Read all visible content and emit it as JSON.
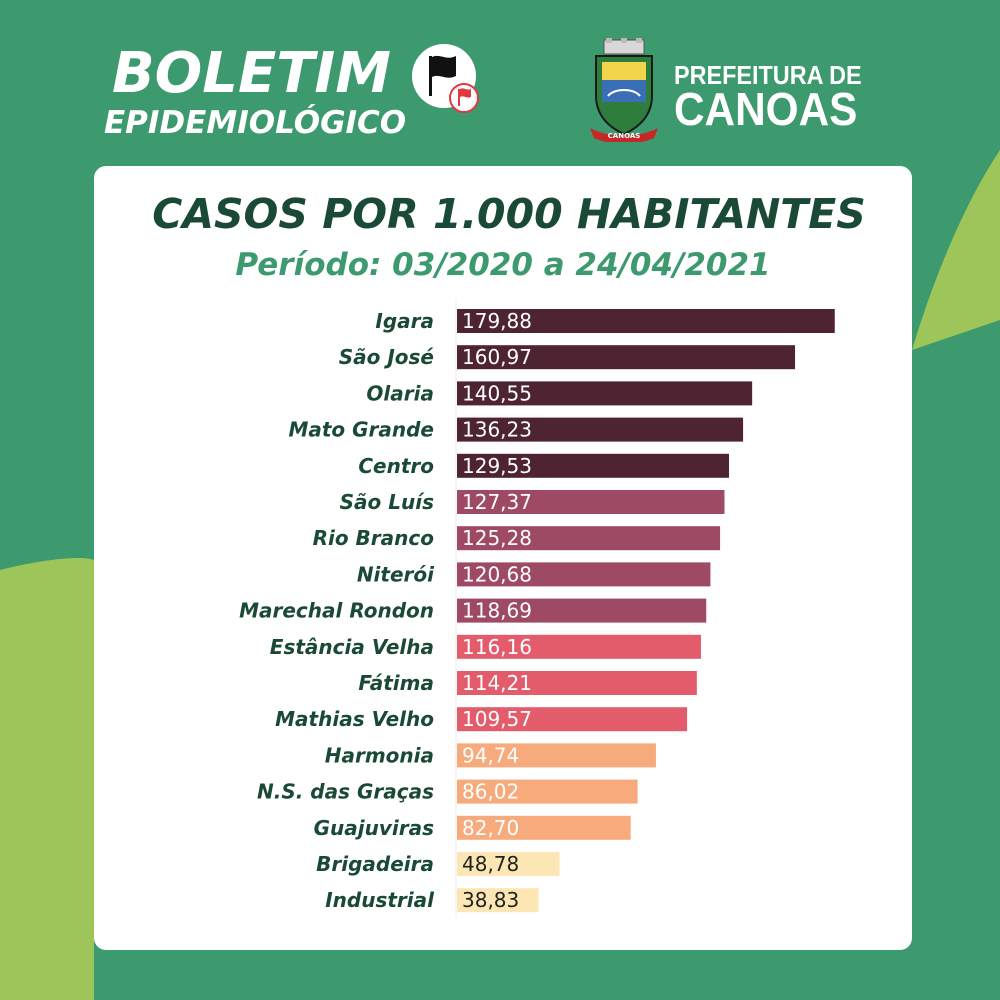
{
  "header": {
    "boletim": "BOLETIM",
    "epidemiologico": "EPIDEMIOLÓGICO",
    "prefeitura_line1": "PREFEITURA DE",
    "prefeitura_line2": "CANOAS",
    "coat_banner": "CANOAS",
    "flag_icon": "black-flag-icon",
    "red_flag_icon": "red-flag-icon"
  },
  "colors": {
    "background": "#3d9a6e",
    "swoosh": "#9dc55a",
    "title": "#1a4a36",
    "subtitle": "#3d9a6e",
    "tier_dark": "#4e2433",
    "tier_mauve": "#9e4a64",
    "tier_red": "#e35c6c",
    "tier_orange": "#f7ab7c",
    "tier_cream": "#fbe6b4"
  },
  "chart_data": {
    "type": "bar",
    "orientation": "horizontal",
    "title": "CASOS POR 1.000 HABITANTES",
    "subtitle": "Período: 03/2020 a 24/04/2021",
    "categories": [
      "Igara",
      "São José",
      "Olaria",
      "Mato Grande",
      "Centro",
      "São Luís",
      "Rio Branco",
      "Niterói",
      "Marechal Rondon",
      "Estância Velha",
      "Fátima",
      "Mathias Velho",
      "Harmonia",
      "N.S. das Graças",
      "Guajuviras",
      "Brigadeira",
      "Industrial"
    ],
    "values": [
      179.88,
      160.97,
      140.55,
      136.23,
      129.53,
      127.37,
      125.28,
      120.68,
      118.69,
      116.16,
      114.21,
      109.57,
      94.74,
      86.02,
      82.7,
      48.78,
      38.83
    ],
    "value_labels": [
      "179,88",
      "160,97",
      "140,55",
      "136,23",
      "129,53",
      "127,37",
      "125,28",
      "120,68",
      "118,69",
      "116,16",
      "114,21",
      "109,57",
      "94,74",
      "86,02",
      "82,70",
      "48,78",
      "38,83"
    ],
    "color_tiers": [
      "dark",
      "dark",
      "dark",
      "dark",
      "dark",
      "mauve",
      "mauve",
      "mauve",
      "mauve",
      "red",
      "red",
      "red",
      "orange",
      "orange",
      "orange",
      "cream",
      "cream"
    ],
    "xlim": [
      0,
      180
    ],
    "grid": false,
    "legend": "none"
  }
}
